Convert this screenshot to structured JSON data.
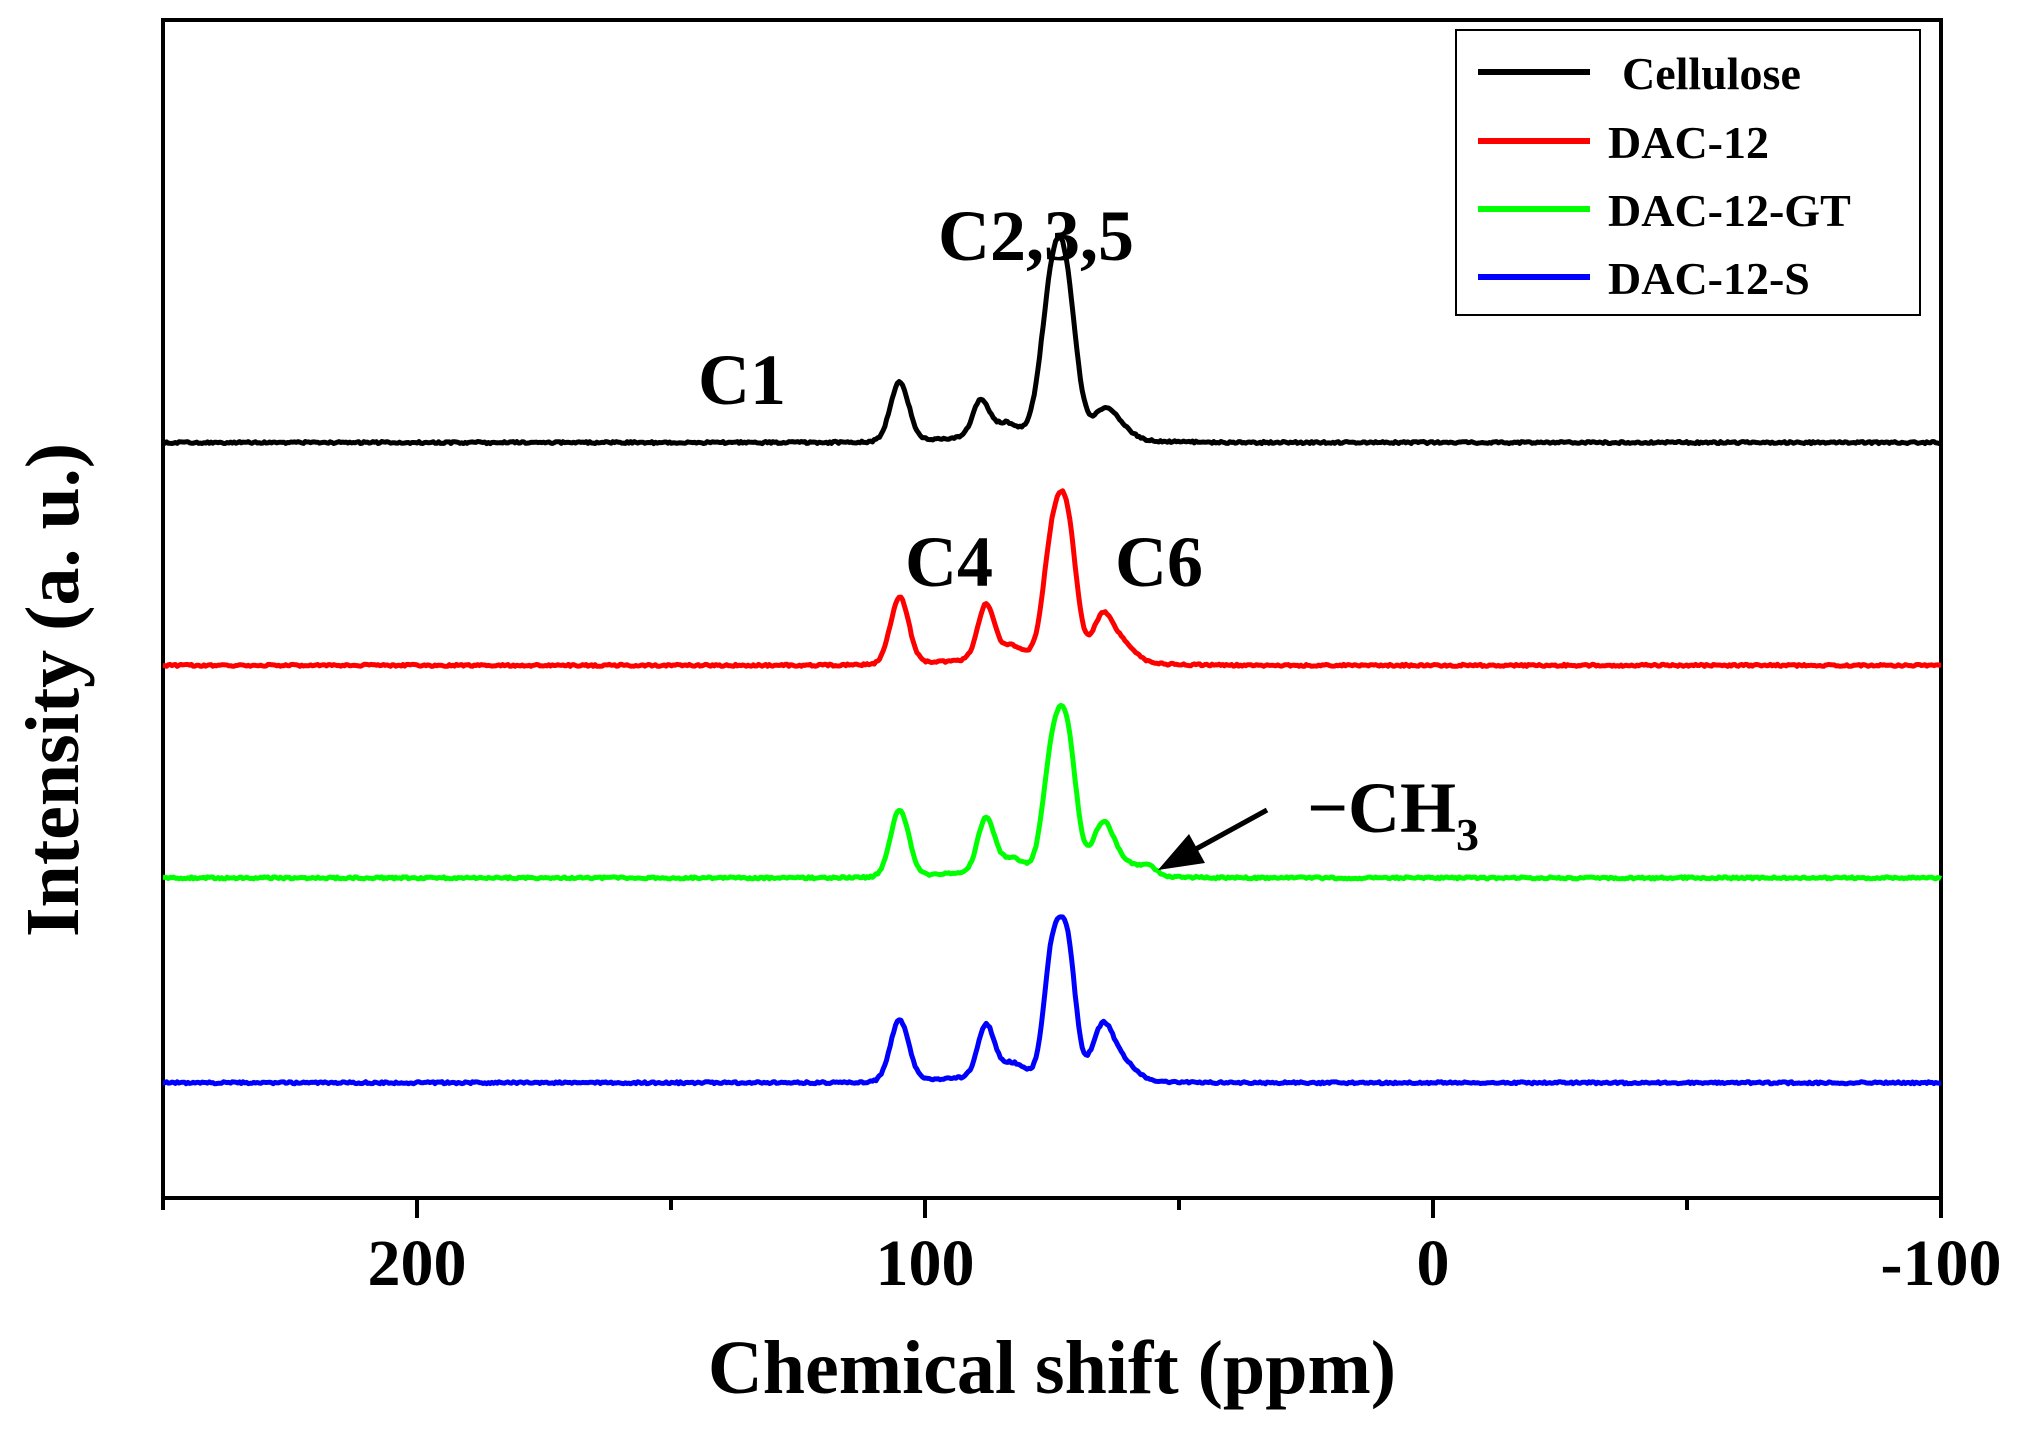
{
  "chart_data": {
    "type": "line",
    "title": "",
    "xlabel": "Chemical shift (ppm)",
    "ylabel": "Intensity (a. u.)",
    "xlim": [
      250,
      -100
    ],
    "ylim": [
      0,
      4.6
    ],
    "x_ticks": [
      200,
      100,
      0,
      -100
    ],
    "x_tick_labels": [
      "200",
      "100",
      "0",
      "-100"
    ],
    "legend_position": "top-right",
    "series": [
      {
        "name": "Cellulose",
        "color": "#000000",
        "offset": 2.95,
        "peaks": [
          {
            "ppm": 105,
            "height": 0.23,
            "width": 1.8
          },
          {
            "ppm": 89,
            "height": 0.14,
            "width": 1.6
          },
          {
            "ppm": 84,
            "height": 0.05,
            "width": 2.2
          },
          {
            "ppm": 75,
            "height": 0.55,
            "width": 2.2
          },
          {
            "ppm": 72,
            "height": 0.45,
            "width": 2.0
          },
          {
            "ppm": 65,
            "height": 0.09,
            "width": 2.2
          },
          {
            "ppm": 62,
            "height": 0.05,
            "width": 2.5
          }
        ]
      },
      {
        "name": "DAC-12",
        "color": "#ff0000",
        "offset": 2.08,
        "peaks": [
          {
            "ppm": 105,
            "height": 0.26,
            "width": 1.8
          },
          {
            "ppm": 88,
            "height": 0.21,
            "width": 1.6
          },
          {
            "ppm": 83,
            "height": 0.05,
            "width": 2.2
          },
          {
            "ppm": 75,
            "height": 0.42,
            "width": 1.8
          },
          {
            "ppm": 72,
            "height": 0.5,
            "width": 1.8
          },
          {
            "ppm": 65,
            "height": 0.17,
            "width": 2.0
          },
          {
            "ppm": 61,
            "height": 0.07,
            "width": 2.5
          }
        ]
      },
      {
        "name": "DAC-12-GT",
        "color": "#00ff00",
        "offset": 1.25,
        "peaks": [
          {
            "ppm": 105,
            "height": 0.26,
            "width": 1.8
          },
          {
            "ppm": 88,
            "height": 0.21,
            "width": 1.6
          },
          {
            "ppm": 83,
            "height": 0.05,
            "width": 2.2
          },
          {
            "ppm": 75,
            "height": 0.42,
            "width": 1.8
          },
          {
            "ppm": 72,
            "height": 0.49,
            "width": 1.8
          },
          {
            "ppm": 65,
            "height": 0.19,
            "width": 2.0
          },
          {
            "ppm": 61,
            "height": 0.05,
            "width": 2.5
          },
          {
            "ppm": 56,
            "height": 0.04,
            "width": 1.5
          }
        ]
      },
      {
        "name": "DAC-12-S",
        "color": "#0000ff",
        "offset": 0.45,
        "peaks": [
          {
            "ppm": 105,
            "height": 0.24,
            "width": 1.8
          },
          {
            "ppm": 88,
            "height": 0.2,
            "width": 1.6
          },
          {
            "ppm": 83,
            "height": 0.05,
            "width": 2.2
          },
          {
            "ppm": 75,
            "height": 0.46,
            "width": 1.6
          },
          {
            "ppm": 72,
            "height": 0.5,
            "width": 1.6
          },
          {
            "ppm": 65,
            "height": 0.2,
            "width": 2.0
          },
          {
            "ppm": 61,
            "height": 0.07,
            "width": 2.5
          }
        ]
      }
    ],
    "annotations": [
      "C1",
      "C2,3,5",
      "C4",
      "C6",
      "−CH",
      "3"
    ]
  }
}
